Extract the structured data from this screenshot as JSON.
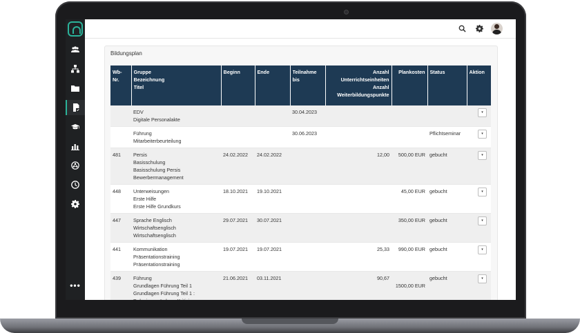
{
  "panel": {
    "title": "Bildungsplan"
  },
  "columns": {
    "wbnr": [
      "Wb-",
      "Nr."
    ],
    "gruppe": [
      "Gruppe",
      "Bezeichnung",
      "Titel"
    ],
    "beginn": "Beginn",
    "ende": "Ende",
    "teilnahme": [
      "Teilnahme",
      "bis"
    ],
    "anzahl": [
      "Anzahl",
      "Unterrichtseinheiten",
      "Anzahl",
      "Weiterbildungspunkte"
    ],
    "plankosten": "Plankosten",
    "status": "Status",
    "aktion": "Aktion"
  },
  "rows": [
    {
      "nr": "",
      "g": "EDV",
      "b": "Digitale Personalakte",
      "t": "",
      "t2": "",
      "beginn": "",
      "ende": "",
      "teilnahme": "30.04.2023",
      "anzahl": "",
      "kosten": "",
      "status": "",
      "aktion": "▾"
    },
    {
      "nr": "",
      "g": "Führung",
      "b": "Mitarbeiterbeurteilung",
      "t": "",
      "t2": "",
      "beginn": "",
      "ende": "",
      "teilnahme": "30.06.2023",
      "anzahl": "",
      "kosten": "",
      "status": "Pflichtseminar",
      "aktion": "▾"
    },
    {
      "nr": "481",
      "g": "Persis",
      "b": "Basisschulung",
      "t": "Basisschulung Persis",
      "t2": "Bewerbermanagement",
      "beginn": "24.02.2022",
      "ende": "24.02.2022",
      "teilnahme": "",
      "anzahl": "12,00",
      "kosten": "500,00 EUR",
      "status": "gebucht",
      "aktion": "▾"
    },
    {
      "nr": "448",
      "g": "Unterweisungen",
      "b": "Erste Hilfe",
      "t": "Erste Hilfe Grundkurs",
      "t2": "",
      "beginn": "18.10.2021",
      "ende": "19.10.2021",
      "teilnahme": "",
      "anzahl": "",
      "kosten": "45,00 EUR",
      "status": "gebucht",
      "aktion": "▾"
    },
    {
      "nr": "447",
      "g": "Sprache Englisch",
      "b": "Wirtschaftsenglisch",
      "t": "Wirtschaftsenglisch",
      "t2": "",
      "beginn": "29.07.2021",
      "ende": "30.07.2021",
      "teilnahme": "",
      "anzahl": "",
      "kosten": "350,00 EUR",
      "status": "gebucht",
      "aktion": "▾"
    },
    {
      "nr": "441",
      "g": "Kommunikation",
      "b": "Präsentationstraining",
      "t": "Präsentationstraining",
      "t2": "",
      "beginn": "19.07.2021",
      "ende": "19.07.2021",
      "teilnahme": "",
      "anzahl": "25,33",
      "kosten": "990,00 EUR",
      "status": "gebucht",
      "aktion": "▾"
    },
    {
      "nr": "439",
      "g": "Führung",
      "b": "Grundlagen Führung Teil 1",
      "t": "Grundlagen Führung Teil 1 :",
      "t2": "Delegieren- Loben -Kritisieren",
      "beginn": "21.06.2021",
      "ende": "03.11.2021",
      "teilnahme": "",
      "anzahl": "90,67",
      "kosten": "1500,00 EUR",
      "status": "gebucht",
      "aktion": "▾"
    }
  ],
  "sidebar": {
    "more": "•••"
  },
  "icons": [
    "users-icon",
    "org-chart-icon",
    "folder-icon",
    "document-icon",
    "graduation-cap-icon",
    "bar-chart-icon",
    "network-icon",
    "clock-icon",
    "gear-icon",
    "search-icon",
    "settings-icon"
  ]
}
